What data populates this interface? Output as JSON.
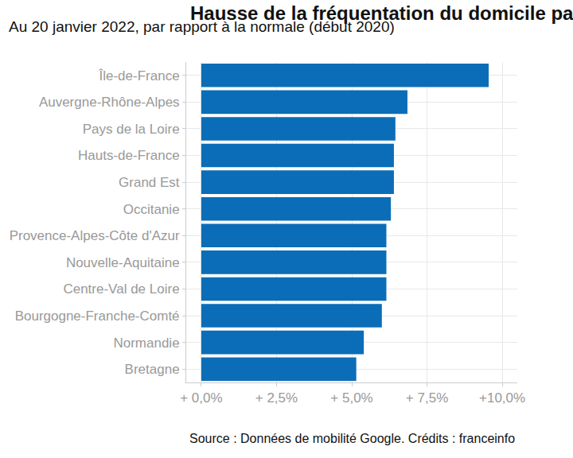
{
  "chart_data": {
    "type": "bar",
    "orientation": "horizontal",
    "title": "Hausse de la fréquentation du domicile par région",
    "subtitle": "Au 20 janvier 2022, par rapport à la normale (début 2020)",
    "source": "Source : Données de mobilité Google. Crédits : franceinfo",
    "categories": [
      "Île-de-France",
      "Auvergne-Rhône-Alpes",
      "Pays de la Loire",
      "Hauts-de-France",
      "Grand Est",
      "Occitanie",
      "Provence-Alpes-Côte d'Azur",
      "Nouvelle-Aquitaine",
      "Centre-Val de Loire",
      "Bourgogne-Franche-Comté",
      "Normandie",
      "Bretagne"
    ],
    "values": [
      9.55,
      6.85,
      6.45,
      6.4,
      6.4,
      6.3,
      6.15,
      6.15,
      6.15,
      6.0,
      5.4,
      5.15
    ],
    "color": "#0b6db7",
    "xlim": [
      -0.5,
      10.5
    ],
    "xticks": [
      {
        "value": 0,
        "label": "+ 0,0%"
      },
      {
        "value": 2.5,
        "label": "+ 2,5%"
      },
      {
        "value": 5,
        "label": "+ 5,0%"
      },
      {
        "value": 7.5,
        "label": "+ 7,5%"
      },
      {
        "value": 10,
        "label": "+10,0%"
      }
    ],
    "grid": true
  }
}
